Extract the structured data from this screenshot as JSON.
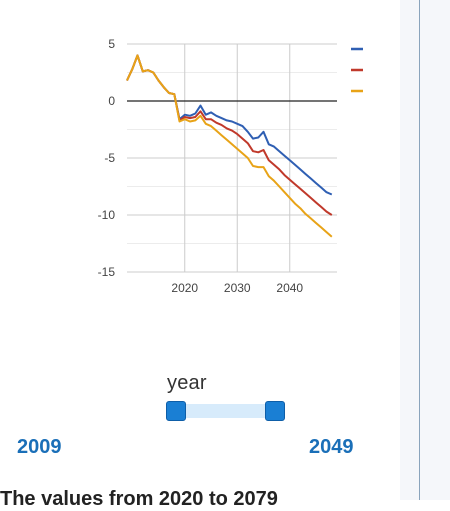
{
  "chart_data": {
    "type": "line",
    "title": "",
    "xlabel": "",
    "ylabel": "",
    "xlim": [
      2009,
      2049
    ],
    "ylim": [
      -15,
      5
    ],
    "x_ticks": [
      2020,
      2030,
      2040
    ],
    "y_ticks": [
      5,
      0,
      -5,
      -10,
      -15
    ],
    "x_tick_labels": [
      "2020",
      "2030",
      "2040"
    ],
    "y_tick_labels": [
      "5",
      "0",
      "-5",
      "-10",
      "-15"
    ],
    "grid": true,
    "legend": "top-right",
    "series": [
      {
        "color": "#2f5fb3",
        "points": [
          [
            2009,
            1.8
          ],
          [
            2010,
            2.8
          ],
          [
            2011,
            4.0
          ],
          [
            2012,
            2.6
          ],
          [
            2013,
            2.7
          ],
          [
            2014,
            2.5
          ],
          [
            2015,
            1.8
          ],
          [
            2016,
            1.2
          ],
          [
            2017,
            0.7
          ],
          [
            2018,
            0.6
          ],
          [
            2019,
            -1.6
          ],
          [
            2020,
            -1.2
          ],
          [
            2021,
            -1.3
          ],
          [
            2022,
            -1.1
          ],
          [
            2023,
            -0.4
          ],
          [
            2024,
            -1.2
          ],
          [
            2025,
            -1.0
          ],
          [
            2026,
            -1.3
          ],
          [
            2027,
            -1.5
          ],
          [
            2028,
            -1.7
          ],
          [
            2029,
            -1.8
          ],
          [
            2030,
            -2.0
          ],
          [
            2031,
            -2.2
          ],
          [
            2032,
            -2.7
          ],
          [
            2033,
            -3.3
          ],
          [
            2034,
            -3.2
          ],
          [
            2035,
            -2.7
          ],
          [
            2036,
            -3.8
          ],
          [
            2037,
            -4.0
          ],
          [
            2038,
            -4.4
          ],
          [
            2039,
            -4.8
          ],
          [
            2040,
            -5.2
          ],
          [
            2041,
            -5.6
          ],
          [
            2042,
            -6.0
          ],
          [
            2043,
            -6.4
          ],
          [
            2044,
            -6.8
          ],
          [
            2045,
            -7.2
          ],
          [
            2046,
            -7.6
          ],
          [
            2047,
            -8.0
          ],
          [
            2048,
            -8.2
          ]
        ]
      },
      {
        "color": "#c0392b",
        "points": [
          [
            2009,
            1.8
          ],
          [
            2010,
            2.8
          ],
          [
            2011,
            4.0
          ],
          [
            2012,
            2.6
          ],
          [
            2013,
            2.7
          ],
          [
            2014,
            2.5
          ],
          [
            2015,
            1.8
          ],
          [
            2016,
            1.2
          ],
          [
            2017,
            0.7
          ],
          [
            2018,
            0.6
          ],
          [
            2019,
            -1.7
          ],
          [
            2020,
            -1.4
          ],
          [
            2021,
            -1.5
          ],
          [
            2022,
            -1.4
          ],
          [
            2023,
            -0.9
          ],
          [
            2024,
            -1.6
          ],
          [
            2025,
            -1.6
          ],
          [
            2026,
            -1.9
          ],
          [
            2027,
            -2.1
          ],
          [
            2028,
            -2.4
          ],
          [
            2029,
            -2.6
          ],
          [
            2030,
            -2.9
          ],
          [
            2031,
            -3.3
          ],
          [
            2032,
            -3.7
          ],
          [
            2033,
            -4.4
          ],
          [
            2034,
            -4.5
          ],
          [
            2035,
            -4.3
          ],
          [
            2036,
            -5.2
          ],
          [
            2037,
            -5.6
          ],
          [
            2038,
            -6.0
          ],
          [
            2039,
            -6.5
          ],
          [
            2040,
            -6.9
          ],
          [
            2041,
            -7.3
          ],
          [
            2042,
            -7.7
          ],
          [
            2043,
            -8.1
          ],
          [
            2044,
            -8.5
          ],
          [
            2045,
            -8.9
          ],
          [
            2046,
            -9.3
          ],
          [
            2047,
            -9.7
          ],
          [
            2048,
            -10.0
          ]
        ]
      },
      {
        "color": "#e8a317",
        "points": [
          [
            2009,
            1.8
          ],
          [
            2010,
            2.8
          ],
          [
            2011,
            4.0
          ],
          [
            2012,
            2.6
          ],
          [
            2013,
            2.7
          ],
          [
            2014,
            2.5
          ],
          [
            2015,
            1.8
          ],
          [
            2016,
            1.2
          ],
          [
            2017,
            0.7
          ],
          [
            2018,
            0.6
          ],
          [
            2019,
            -1.8
          ],
          [
            2020,
            -1.6
          ],
          [
            2021,
            -1.8
          ],
          [
            2022,
            -1.7
          ],
          [
            2023,
            -1.3
          ],
          [
            2024,
            -2.0
          ],
          [
            2025,
            -2.2
          ],
          [
            2026,
            -2.6
          ],
          [
            2027,
            -3.0
          ],
          [
            2028,
            -3.4
          ],
          [
            2029,
            -3.8
          ],
          [
            2030,
            -4.2
          ],
          [
            2031,
            -4.6
          ],
          [
            2032,
            -5.0
          ],
          [
            2033,
            -5.7
          ],
          [
            2034,
            -5.8
          ],
          [
            2035,
            -5.8
          ],
          [
            2036,
            -6.6
          ],
          [
            2037,
            -7.0
          ],
          [
            2038,
            -7.5
          ],
          [
            2039,
            -8.0
          ],
          [
            2040,
            -8.5
          ],
          [
            2041,
            -9.0
          ],
          [
            2042,
            -9.4
          ],
          [
            2043,
            -9.9
          ],
          [
            2044,
            -10.3
          ],
          [
            2045,
            -10.7
          ],
          [
            2046,
            -11.1
          ],
          [
            2047,
            -11.5
          ],
          [
            2048,
            -11.9
          ]
        ]
      }
    ]
  },
  "slider": {
    "label": "year",
    "min_label": "2009",
    "max_label": "2049",
    "selected_min_fraction": 0.0,
    "selected_max_fraction": 1.0
  },
  "footer": {
    "text": "The values from 2020 to 2079"
  },
  "colors": {
    "accent": "#1a7fd4",
    "range_text": "#1a6fb8",
    "track": "#d7ebfb"
  }
}
